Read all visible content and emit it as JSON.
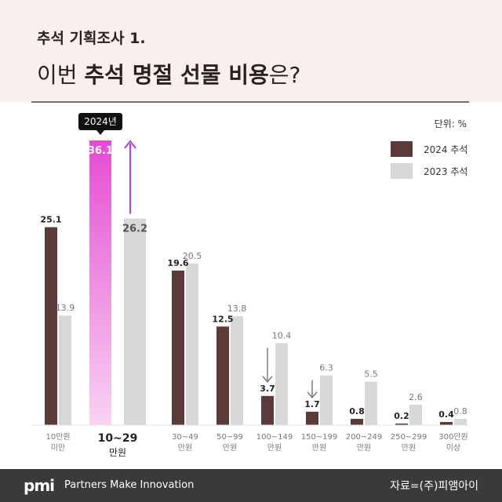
{
  "header": {
    "subtitle": "추석 기획조사 1.",
    "title_prefix": "이번 ",
    "title_highlight": "추석 명절 선물 비용",
    "title_suffix": "은?"
  },
  "chart_data": {
    "type": "bar",
    "unit_label": "단위: %",
    "categories": [
      [
        "10만원",
        "미만"
      ],
      [
        "10~29",
        "만원"
      ],
      [
        "30~49",
        "만원"
      ],
      [
        "50~99",
        "만원"
      ],
      [
        "100~149",
        "만원"
      ],
      [
        "150~199",
        "만원"
      ],
      [
        "200~249",
        "만원"
      ],
      [
        "250~299",
        "만원"
      ],
      [
        "300만원",
        "이상"
      ]
    ],
    "highlight_index": 1,
    "highlight_tag": "2024년",
    "series": [
      {
        "name": "2024 추석",
        "values": [
          25.1,
          36.1,
          19.6,
          12.5,
          3.7,
          1.7,
          0.8,
          0.2,
          0.4
        ]
      },
      {
        "name": "2023 추석",
        "values": [
          13.9,
          26.2,
          20.5,
          13.8,
          10.4,
          6.3,
          5.5,
          2.6,
          0.8
        ]
      }
    ],
    "value_labels": {
      "2024": [
        "25.1",
        "36.1",
        "19.6",
        "12.5",
        "3.7",
        "1.7",
        "0.8",
        "0.2",
        "0.4"
      ],
      "2023": [
        "13.9",
        "26.2",
        "20.5",
        "13.8",
        "10.4",
        "6.3",
        "5.5",
        "2.6",
        "0.8"
      ]
    },
    "ylim": [
      0,
      36.1
    ],
    "grid": false,
    "legend_position": "top-right",
    "colors": {
      "2024": "#5b3a3a",
      "2023": "#d8d8d8",
      "highlight": "#e54bd2",
      "arrow_up": "#b23fd0",
      "arrow_down": "#7a7a7a"
    }
  },
  "footer": {
    "logo": "pmi",
    "tagline": "Partners Make Innovation",
    "source": "자료=(주)피앰아이"
  }
}
